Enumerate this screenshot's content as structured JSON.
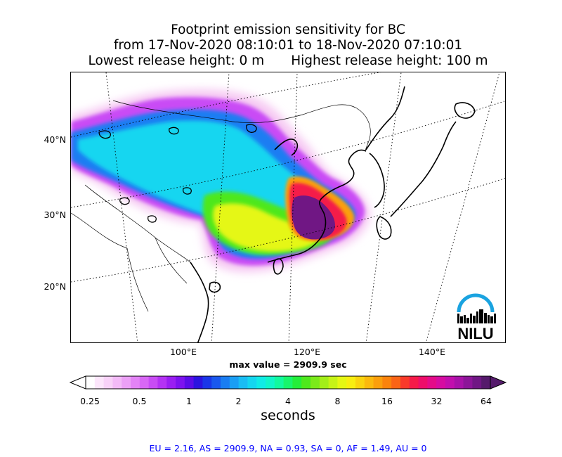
{
  "title": {
    "line1": "Footprint emission sensitivity for BC",
    "line2": "from 17-Nov-2020 08:10:01 to 18-Nov-2020 07:10:01",
    "line3_left": "Lowest release height: 0 m",
    "line3_right": "Highest release height: 100 m"
  },
  "map": {
    "lat_labels": [
      "40°N",
      "30°N",
      "20°N"
    ],
    "lon_labels": [
      "100°E",
      "120°E",
      "140°E"
    ],
    "max_value_text": "max value = 2909.9 sec",
    "logo_text": "NILU"
  },
  "colorbar": {
    "ticks": [
      "0.25",
      "0.5",
      "1",
      "2",
      "4",
      "8",
      "16",
      "32",
      "64"
    ],
    "label": "seconds",
    "colors": [
      "#ffffff",
      "#fce6fb",
      "#f8d2f8",
      "#f3baf7",
      "#eca0f6",
      "#e383f6",
      "#d867f5",
      "#c94cf5",
      "#b432f4",
      "#9a1ef2",
      "#7d12ef",
      "#5a0ce8",
      "#2b13e0",
      "#1a36e8",
      "#1a58ee",
      "#1a7df2",
      "#1a9ef4",
      "#19bdf4",
      "#14d6f0",
      "#10ebe6",
      "#10f5c9",
      "#12f99e",
      "#18f56b",
      "#24ee3a",
      "#4ee81d",
      "#7bea1a",
      "#a3ee18",
      "#c6f316",
      "#e5f713",
      "#f8ee10",
      "#fad40e",
      "#fbb90d",
      "#fb9f0c",
      "#fb830c",
      "#fa6416",
      "#f93a2a",
      "#f51a49",
      "#ee0d6a",
      "#e40b89",
      "#d60ca1",
      "#c20fad",
      "#a812a8",
      "#8c1598",
      "#701784",
      "#551a6b"
    ]
  },
  "stats_line": "EU = 2.16,  AS = 2909.9,  NA = 0.93,  SA = 0,  AF = 1.49,  AU = 0"
}
